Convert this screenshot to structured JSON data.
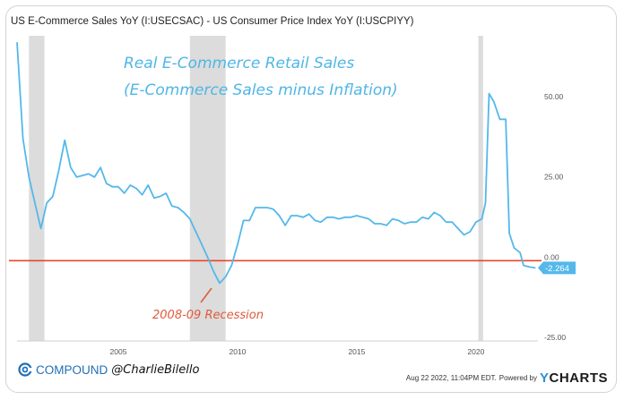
{
  "header": {
    "title": "US E-Commerce Sales YoY (I:USECSAC) - US Consumer Price Index YoY (I:USCPIYY)"
  },
  "annotations": {
    "line1": "Real E-Commerce Retail Sales",
    "line2": "(E-Commerce Sales minus Inflation)",
    "recession": "2008-09 Recession"
  },
  "footer": {
    "brand": "COMPOUND",
    "handle": "@CharlieBilello",
    "timestamp": "Aug 22 2022, 11:04PM EDT.",
    "powered_by": "Powered by",
    "ycharts_y": "Y",
    "ycharts_rest": "CHARTS"
  },
  "colors": {
    "line": "#54b8ea",
    "zero_line": "#e8452c",
    "recession_band": "#dcdcdc",
    "last_value_badge": "#54b8ea",
    "brand": "#1f6fb6"
  },
  "chart_data": {
    "type": "line",
    "title": "US E-Commerce Sales YoY (I:USECSAC) - US Consumer Price Index YoY (I:USCPIYY)",
    "xlabel": "",
    "ylabel": "",
    "xlim": [
      2000.75,
      2022.6
    ],
    "ylim": [
      -25,
      70
    ],
    "x_ticks": [
      2005,
      2010,
      2015,
      2020
    ],
    "x_tick_labels": [
      "2005",
      "2010",
      "2015",
      "2020"
    ],
    "y_ticks": [
      50,
      25,
      0,
      -25
    ],
    "y_tick_labels": [
      "50.00",
      "25.00",
      "0.00",
      "-25.00"
    ],
    "grid": false,
    "zero_line": 0,
    "recessions": [
      [
        2001.25,
        2001.9
      ],
      [
        2008.0,
        2009.5
      ],
      [
        2020.1,
        2020.3
      ]
    ],
    "last_value": -2.264,
    "last_value_label": "-2.264",
    "series": [
      {
        "points": [
          [
            2000.75,
            68
          ],
          [
            2001.0,
            38
          ],
          [
            2001.25,
            26
          ],
          [
            2001.5,
            18
          ],
          [
            2001.75,
            10
          ],
          [
            2002.0,
            18
          ],
          [
            2002.25,
            20
          ],
          [
            2002.5,
            28
          ],
          [
            2002.75,
            37.5
          ],
          [
            2003.0,
            29
          ],
          [
            2003.25,
            26
          ],
          [
            2003.5,
            26.5
          ],
          [
            2003.75,
            27
          ],
          [
            2004.0,
            26
          ],
          [
            2004.25,
            29
          ],
          [
            2004.5,
            24
          ],
          [
            2004.75,
            23
          ],
          [
            2005.0,
            23
          ],
          [
            2005.25,
            21
          ],
          [
            2005.5,
            23.5
          ],
          [
            2005.75,
            22.5
          ],
          [
            2006.0,
            20.5
          ],
          [
            2006.25,
            23.5
          ],
          [
            2006.5,
            19.5
          ],
          [
            2006.75,
            20
          ],
          [
            2007.0,
            21
          ],
          [
            2007.25,
            17
          ],
          [
            2007.5,
            16.5
          ],
          [
            2007.75,
            15
          ],
          [
            2008.0,
            13
          ],
          [
            2008.25,
            9
          ],
          [
            2008.5,
            5
          ],
          [
            2008.75,
            1
          ],
          [
            2009.0,
            -3.5
          ],
          [
            2009.25,
            -7
          ],
          [
            2009.5,
            -5
          ],
          [
            2009.75,
            -1.5
          ],
          [
            2010.0,
            5
          ],
          [
            2010.25,
            12.5
          ],
          [
            2010.5,
            12.5
          ],
          [
            2010.75,
            16.5
          ],
          [
            2011.0,
            16.5
          ],
          [
            2011.25,
            16.5
          ],
          [
            2011.5,
            16
          ],
          [
            2011.75,
            14
          ],
          [
            2012.0,
            11
          ],
          [
            2012.25,
            14
          ],
          [
            2012.5,
            14
          ],
          [
            2012.75,
            13.5
          ],
          [
            2013.0,
            14.5
          ],
          [
            2013.25,
            12.5
          ],
          [
            2013.5,
            12
          ],
          [
            2013.75,
            13.5
          ],
          [
            2014.0,
            13.5
          ],
          [
            2014.25,
            13
          ],
          [
            2014.5,
            13.5
          ],
          [
            2014.75,
            13.5
          ],
          [
            2015.0,
            14
          ],
          [
            2015.25,
            13.5
          ],
          [
            2015.5,
            13
          ],
          [
            2015.75,
            11.5
          ],
          [
            2016.0,
            11.5
          ],
          [
            2016.25,
            11
          ],
          [
            2016.5,
            13
          ],
          [
            2016.75,
            12.5
          ],
          [
            2017.0,
            11.5
          ],
          [
            2017.25,
            12
          ],
          [
            2017.5,
            12
          ],
          [
            2017.75,
            13.5
          ],
          [
            2018.0,
            13
          ],
          [
            2018.25,
            15
          ],
          [
            2018.5,
            14
          ],
          [
            2018.75,
            12
          ],
          [
            2019.0,
            12
          ],
          [
            2019.25,
            10
          ],
          [
            2019.5,
            8
          ],
          [
            2019.75,
            9
          ],
          [
            2020.0,
            12
          ],
          [
            2020.25,
            13
          ],
          [
            2020.4,
            18
          ],
          [
            2020.55,
            52
          ],
          [
            2020.75,
            49.5
          ],
          [
            2021.0,
            44
          ],
          [
            2021.25,
            44
          ],
          [
            2021.4,
            8.5
          ],
          [
            2021.6,
            4
          ],
          [
            2021.85,
            2.5
          ],
          [
            2022.0,
            -1.5
          ],
          [
            2022.25,
            -2
          ],
          [
            2022.5,
            -2.264
          ]
        ]
      }
    ]
  }
}
